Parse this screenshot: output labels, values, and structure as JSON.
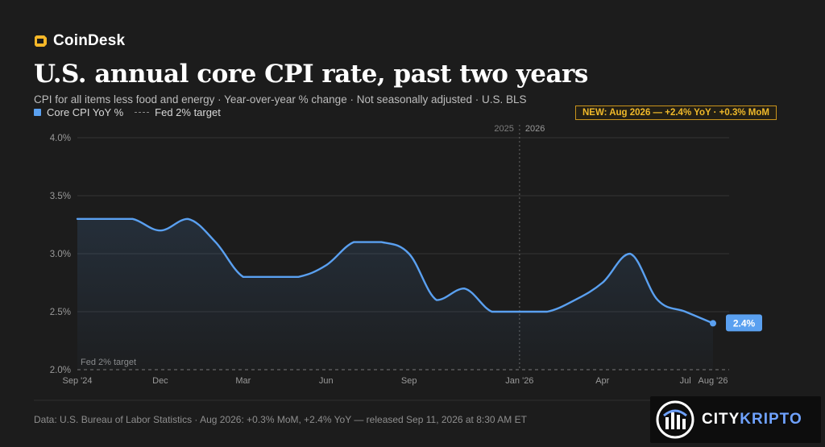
{
  "brand": {
    "name": "CoinDesk",
    "logo_icon": "coindesk-logo-icon"
  },
  "header": {
    "title": "U.S. annual core CPI rate, past two years",
    "subtitle": "CPI for all items less food and energy · Year-over-year % change · Not seasonally adjusted · U.S. BLS"
  },
  "legend": {
    "series_label": "Core CPI YoY %",
    "target_label": "Fed 2% target"
  },
  "badge": "NEW: Aug 2026 — +2.4% YoY · +0.3% MoM",
  "footer": "Data: U.S. Bureau of Labor Statistics · Aug 2026: +0.3% MoM, +2.4% YoY — released Sep 11, 2026 at 8:30 AM ET",
  "watermark": {
    "part1": "CITY",
    "part2": "KRIPTO",
    "logo_icon": "citykripto-logo-icon"
  },
  "colors": {
    "line": "#5aa0f0",
    "badge": "#f0b92a",
    "background": "#1c1c1c"
  },
  "chart_data": {
    "type": "line",
    "x": [
      "Sep '24",
      "Oct '24",
      "Nov '24",
      "Dec '24",
      "Jan '25",
      "Feb '25",
      "Mar '25",
      "Apr '25",
      "May '25",
      "Jun '25",
      "Jul '25",
      "Aug '25",
      "Sep '25",
      "Oct '25",
      "Nov '25",
      "Dec '25",
      "Jan '26",
      "Feb '26",
      "Mar '26",
      "Apr '26",
      "May '26",
      "Jun '26",
      "Jul '26",
      "Aug '26"
    ],
    "series": [
      {
        "name": "Core CPI YoY %",
        "values": [
          3.3,
          3.3,
          3.3,
          3.2,
          3.3,
          3.1,
          2.8,
          2.8,
          2.8,
          2.9,
          3.1,
          3.1,
          3.0,
          2.6,
          2.7,
          2.5,
          2.5,
          2.5,
          2.6,
          2.75,
          3.0,
          2.6,
          2.5,
          2.4
        ]
      }
    ],
    "x_tick_labels": [
      {
        "index": 0,
        "label": "Sep '24"
      },
      {
        "index": 3,
        "label": "Dec"
      },
      {
        "index": 6,
        "label": "Mar"
      },
      {
        "index": 9,
        "label": "Jun"
      },
      {
        "index": 12,
        "label": "Sep"
      },
      {
        "index": 16,
        "label": "Jan '26"
      },
      {
        "index": 19,
        "label": "Apr"
      },
      {
        "index": 22,
        "label": "Jul"
      },
      {
        "index": 23,
        "label": "Aug '26"
      }
    ],
    "y_ticks": [
      {
        "value": 2.0,
        "label": "2.0%"
      },
      {
        "value": 2.5,
        "label": "2.5%"
      },
      {
        "value": 3.0,
        "label": "3.0%"
      },
      {
        "value": 3.5,
        "label": "3.5%"
      },
      {
        "value": 4.0,
        "label": "4.0%"
      }
    ],
    "ylim": [
      2.0,
      4.0
    ],
    "grid": true,
    "reference_line": {
      "value": 2.0,
      "label": "Fed 2% target"
    },
    "year_divider": {
      "index": 16,
      "left_label": "2025",
      "right_label": "2026"
    },
    "last_value_label": "2.4%"
  }
}
